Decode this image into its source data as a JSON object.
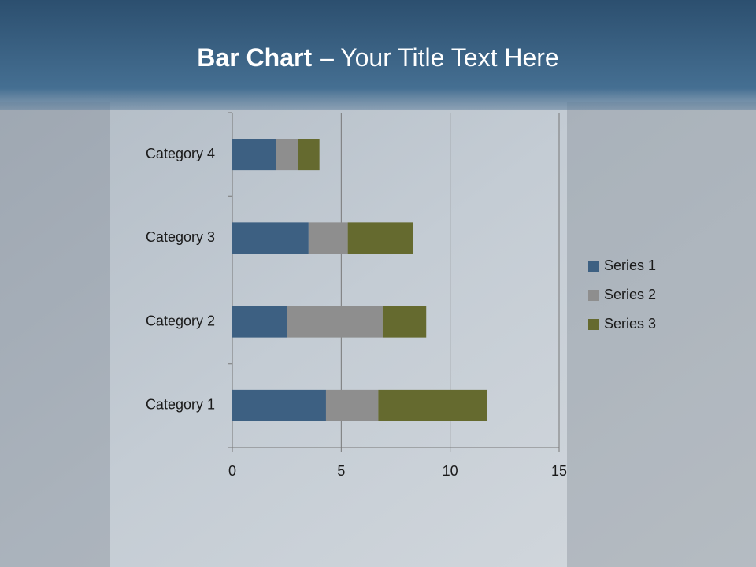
{
  "chart_data": {
    "type": "stacked_barh",
    "title": {
      "bold": "Bar Chart",
      "rest": "– Your Title Text Here"
    },
    "categories": [
      "Category 1",
      "Category 2",
      "Category 3",
      "Category 4"
    ],
    "series": [
      {
        "name": "Series 1",
        "color": "#3d6082",
        "values": [
          4.3,
          2.5,
          3.5,
          2.0
        ]
      },
      {
        "name": "Series 2",
        "color": "#8e8e8e",
        "values": [
          2.4,
          4.4,
          1.8,
          1.0
        ]
      },
      {
        "name": "Series 3",
        "color": "#656a2f",
        "values": [
          5.0,
          2.0,
          3.0,
          1.0
        ]
      }
    ],
    "xlim": [
      0,
      15
    ],
    "xticks": [
      0,
      5,
      10,
      15
    ],
    "grid": true,
    "legend": "right"
  }
}
